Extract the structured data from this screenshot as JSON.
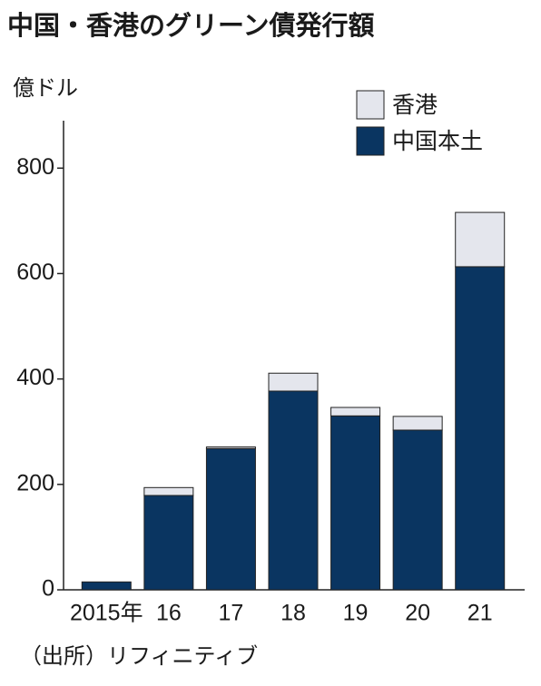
{
  "chart_data": {
    "type": "stacked_bar",
    "title": "中国・香港のグリーン債発行額",
    "y_label": "億ドル",
    "source": "（出所）リフィニティブ",
    "categories": [
      "2015年",
      "16",
      "17",
      "18",
      "19",
      "20",
      "21"
    ],
    "series": [
      {
        "name": "香港",
        "color": "#e4e6ed",
        "values": [
          0,
          15,
          3,
          34,
          16,
          26,
          103
        ]
      },
      {
        "name": "中国本土",
        "color": "#0a3561",
        "values": [
          15,
          179,
          268,
          377,
          330,
          303,
          613
        ]
      }
    ],
    "ylim": [
      0,
      890
    ],
    "yticks": [
      0,
      200,
      400,
      600,
      800
    ],
    "grid": false,
    "legend": "top-right"
  }
}
